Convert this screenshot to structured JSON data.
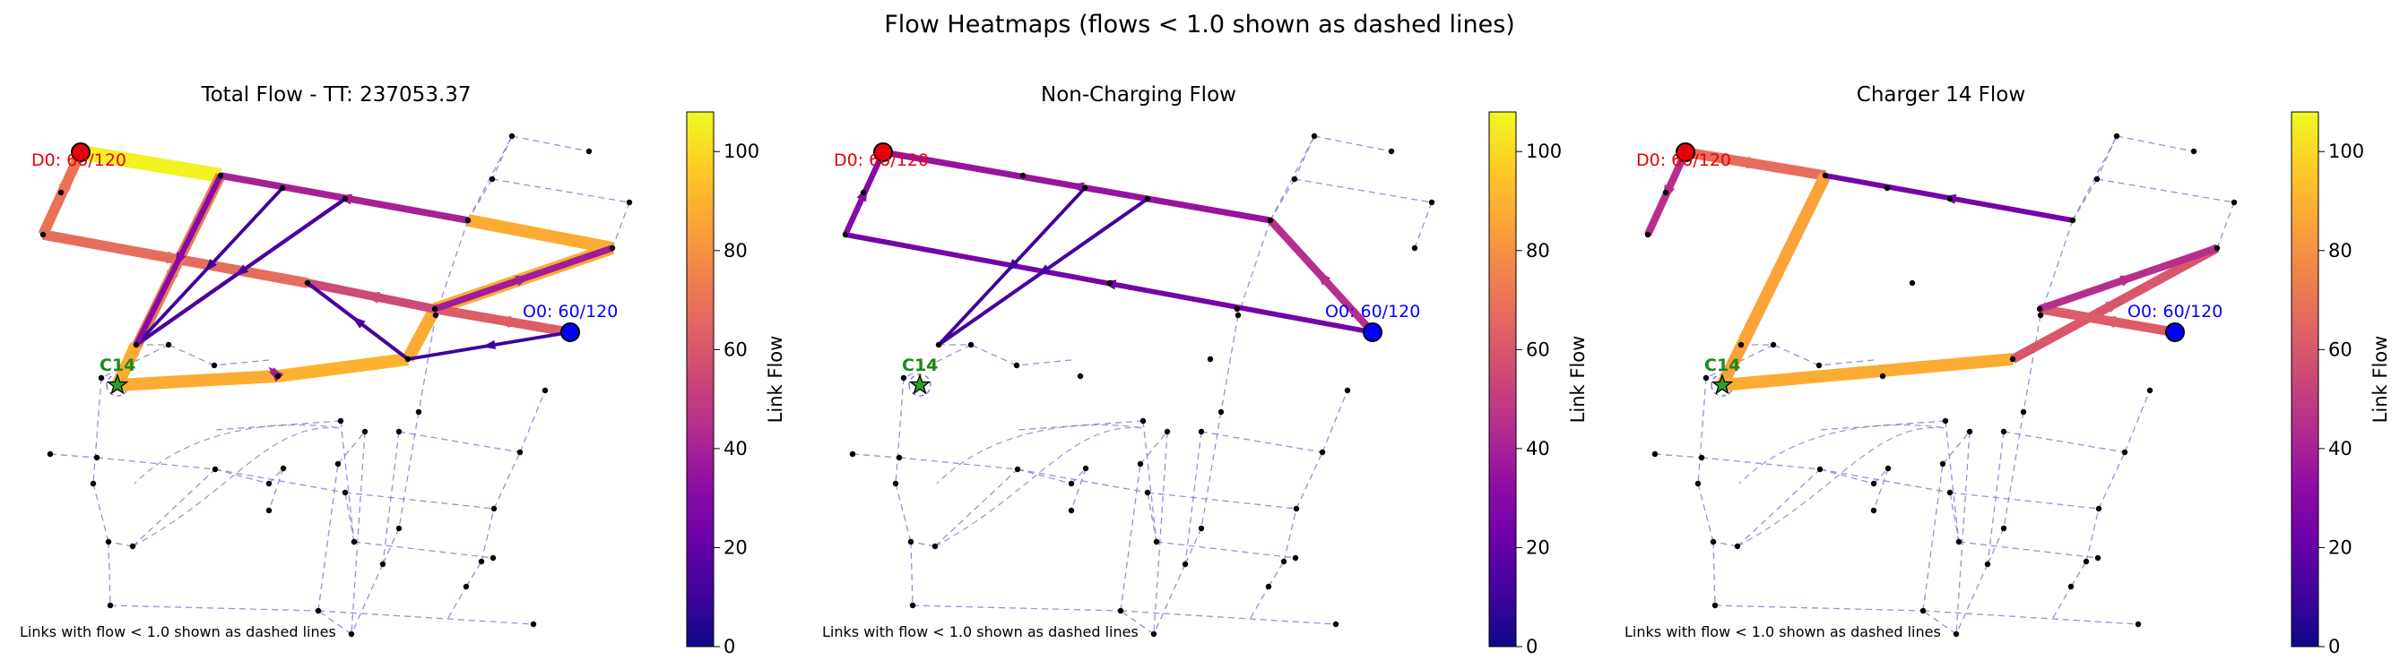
{
  "figure": {
    "suptitle": "Flow Heatmaps (flows < 1.0 shown as dashed lines)",
    "footnote": "Links with flow < 1.0 shown as dashed lines",
    "colorbar_label": "Link Flow",
    "colormap": "plasma",
    "colors": {
      "destination": "#e8000b",
      "origin": "#0000ff",
      "charger": "#1a8a1a",
      "dashed": "#7070c8"
    }
  },
  "chart_data": [
    {
      "type": "network",
      "title": "Total Flow - TT: 237053.37",
      "destination_label": "D0: 60/120",
      "origin_label": "O0: 60/120",
      "charger_label": "C14",
      "footnote": "Links with flow < 1.0 shown as dashed lines",
      "colorbar": {
        "label": "Link Flow",
        "range": [
          0,
          108
        ],
        "ticks": [
          0,
          20,
          40,
          60,
          80,
          100
        ]
      },
      "links": [
        {
          "from": "D0",
          "to": "n_top_a",
          "flow": 106
        },
        {
          "from": "D0",
          "to": "n_left",
          "flow": 70
        },
        {
          "from": "n_left",
          "to": "n_mid_b",
          "flow": 68
        },
        {
          "from": "n_top_a",
          "to": "C14",
          "flow": 72
        },
        {
          "from": "n_mid_a",
          "to": "C14",
          "flow": 88
        },
        {
          "from": "C14",
          "to": "n_low_b",
          "flow": 88
        },
        {
          "from": "n_low_b",
          "to": "n_low_c",
          "flow": 90
        },
        {
          "from": "n_low_c",
          "to": "n_mid_c",
          "flow": 88
        },
        {
          "from": "n_mid_c",
          "to": "n_right_top",
          "flow": 88
        },
        {
          "from": "n_right_top",
          "to": "n_right",
          "flow": 88
        },
        {
          "from": "O0",
          "to": "n_mid_c",
          "flow": 62
        },
        {
          "from": "n_mid_c",
          "to": "n_mid_b",
          "flow": 55
        },
        {
          "from": "n_right",
          "to": "n_top_a",
          "flow": 40
        },
        {
          "from": "n_mid_c",
          "to": "n_right_top",
          "flow": 38
        },
        {
          "from": "n_low_b",
          "to": "n_low_a",
          "flow": 38
        },
        {
          "from": "O0",
          "to": "n_low_c",
          "flow": 10
        },
        {
          "from": "n_low_c",
          "to": "n_mid_b",
          "flow": 12
        },
        {
          "from": "n_top_b",
          "to": "n_mid_a",
          "flow": 10
        },
        {
          "from": "n_top_c",
          "to": "n_mid_a",
          "flow": 14
        },
        {
          "from": "n_top_a",
          "to": "n_mid_a",
          "flow": 30
        }
      ]
    },
    {
      "type": "network",
      "title": "Non-Charging Flow",
      "destination_label": "D0: 60/120",
      "origin_label": "O0: 60/120",
      "charger_label": "C14",
      "footnote": "Links with flow < 1.0 shown as dashed lines",
      "colorbar": {
        "label": "Link Flow",
        "range": [
          0,
          108
        ],
        "ticks": [
          0,
          20,
          40,
          60,
          80,
          100
        ]
      },
      "links": [
        {
          "from": "O0",
          "to": "n_right",
          "flow": 45
        },
        {
          "from": "n_right",
          "to": "D0",
          "flow": 35
        },
        {
          "from": "O0",
          "to": "n_left",
          "flow": 25
        },
        {
          "from": "n_left",
          "to": "D0",
          "flow": 30
        },
        {
          "from": "n_top_b",
          "to": "n_mid_a",
          "flow": 10
        },
        {
          "from": "n_top_c",
          "to": "n_mid_a",
          "flow": 12
        }
      ]
    },
    {
      "type": "network",
      "title": "Charger 14 Flow",
      "destination_label": "D0: 60/120",
      "origin_label": "O0: 60/120",
      "charger_label": "C14",
      "footnote": "Links with flow < 1.0 shown as dashed lines",
      "colorbar": {
        "label": "Link Flow",
        "range": [
          0,
          108
        ],
        "ticks": [
          0,
          20,
          40,
          60,
          80,
          100
        ]
      },
      "links": [
        {
          "from": "D0",
          "to": "n_top_a",
          "flow": 68
        },
        {
          "from": "D0",
          "to": "n_left",
          "flow": 45
        },
        {
          "from": "n_top_a",
          "to": "C14",
          "flow": 85
        },
        {
          "from": "C14",
          "to": "n_low_c",
          "flow": 88
        },
        {
          "from": "n_low_c",
          "to": "n_right_top",
          "flow": 60
        },
        {
          "from": "O0",
          "to": "n_mid_c",
          "flow": 62
        },
        {
          "from": "n_right",
          "to": "n_top_a",
          "flow": 25
        },
        {
          "from": "n_mid_c",
          "to": "n_right_top",
          "flow": 45
        }
      ]
    }
  ]
}
